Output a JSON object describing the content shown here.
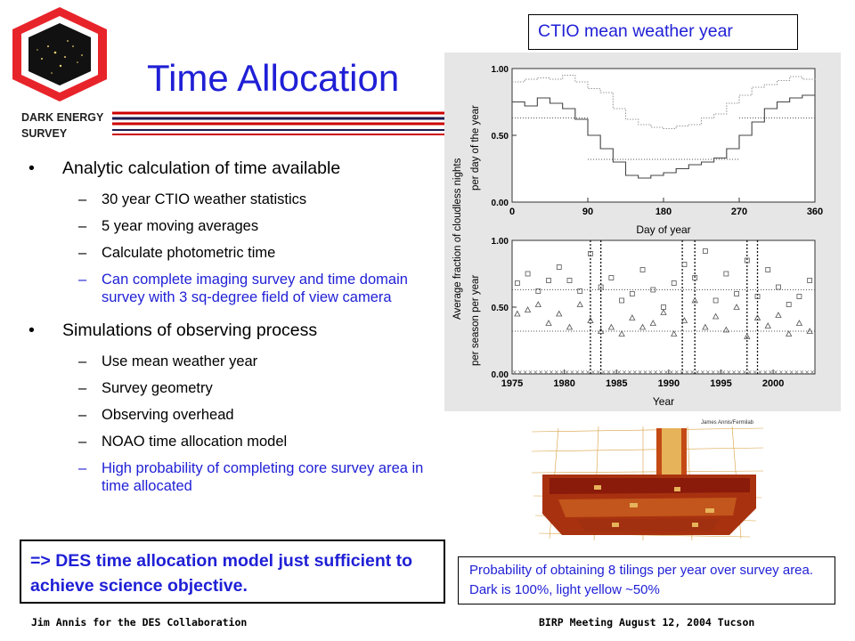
{
  "logo": {
    "line1": "DARK ENERGY",
    "line2": "SURVEY"
  },
  "title": "Time Allocation",
  "bullets": [
    {
      "text": "Analytic calculation of time available",
      "subs": [
        {
          "text": "30 year CTIO weather statistics",
          "highlight": false
        },
        {
          "text": "5 year moving averages",
          "highlight": false
        },
        {
          "text": "Calculate photometric time",
          "highlight": false
        },
        {
          "text": "Can complete imaging survey and time domain survey with 3 sq-degree field of view camera",
          "highlight": true
        }
      ]
    },
    {
      "text": "Simulations of observing process",
      "subs": [
        {
          "text": "Use mean weather year",
          "highlight": false
        },
        {
          "text": "Survey geometry",
          "highlight": false
        },
        {
          "text": "Observing overhead",
          "highlight": false
        },
        {
          "text": "NOAO time allocation model",
          "highlight": false
        },
        {
          "text": "High probability of completing core survey area in time allocated",
          "highlight": true
        }
      ]
    }
  ],
  "conclusion": "=> DES time allocation model just sufficient to achieve science objective.",
  "ctio_label": "CTIO mean weather year",
  "chart_data": [
    {
      "type": "line",
      "ylabel": "Average fraction of cloudless nights",
      "ylabel_sub": "per day of the year",
      "xlabel": "Day of year",
      "x_ticks": [
        "0",
        "90",
        "180",
        "270",
        "360"
      ],
      "y_ticks": [
        "0.00",
        "0.50",
        "1.00"
      ],
      "xlim": [
        0,
        360
      ],
      "ylim": [
        0,
        1
      ],
      "series": [
        {
          "style": "dotted-upper",
          "x": [
            0,
            15,
            30,
            45,
            60,
            75,
            90,
            105,
            120,
            135,
            150,
            165,
            180,
            195,
            210,
            225,
            240,
            255,
            270,
            285,
            300,
            315,
            330,
            345,
            360
          ],
          "values": [
            0.9,
            0.92,
            0.93,
            0.92,
            0.95,
            0.9,
            0.85,
            0.82,
            0.7,
            0.62,
            0.58,
            0.56,
            0.55,
            0.57,
            0.58,
            0.63,
            0.66,
            0.74,
            0.8,
            0.86,
            0.88,
            0.91,
            0.94,
            0.92,
            0.93
          ]
        },
        {
          "style": "solid-lower",
          "x": [
            0,
            15,
            30,
            45,
            60,
            75,
            90,
            105,
            120,
            135,
            150,
            165,
            180,
            195,
            210,
            225,
            240,
            255,
            270,
            285,
            300,
            315,
            330,
            345,
            360
          ],
          "values": [
            0.75,
            0.72,
            0.78,
            0.74,
            0.7,
            0.62,
            0.5,
            0.4,
            0.3,
            0.2,
            0.18,
            0.2,
            0.22,
            0.25,
            0.28,
            0.3,
            0.33,
            0.4,
            0.5,
            0.6,
            0.7,
            0.75,
            0.78,
            0.8,
            0.72
          ]
        }
      ],
      "reference_lines": [
        {
          "y": 0.63,
          "x_range": [
            0,
            90
          ]
        },
        {
          "y": 0.32,
          "x_range": [
            90,
            270
          ]
        },
        {
          "y": 0.63,
          "x_range": [
            270,
            360
          ]
        }
      ]
    },
    {
      "type": "scatter",
      "ylabel_sub": "per season per year",
      "xlabel": "Year",
      "x_ticks": [
        "1975",
        "1980",
        "1985",
        "1990",
        "1995",
        "2000"
      ],
      "y_ticks": [
        "0.00",
        "0.50",
        "1.00"
      ],
      "xlim": [
        1975,
        2004
      ],
      "ylim": [
        0,
        1
      ],
      "series": [
        {
          "marker": "square",
          "x": [
            1975.5,
            1976.5,
            1977.5,
            1978.5,
            1979.5,
            1980.5,
            1981.5,
            1982.5,
            1983.5,
            1984.5,
            1985.5,
            1986.5,
            1987.5,
            1988.5,
            1989.5,
            1990.5,
            1991.5,
            1992.5,
            1993.5,
            1994.5,
            1995.5,
            1996.5,
            1997.5,
            1998.5,
            1999.5,
            2000.5,
            2001.5,
            2002.5,
            2003.5
          ],
          "values": [
            0.68,
            0.75,
            0.62,
            0.7,
            0.8,
            0.7,
            0.62,
            0.9,
            0.65,
            0.72,
            0.55,
            0.6,
            0.78,
            0.63,
            0.5,
            0.68,
            0.82,
            0.72,
            0.92,
            0.55,
            0.75,
            0.6,
            0.85,
            0.58,
            0.78,
            0.65,
            0.52,
            0.58,
            0.7
          ]
        },
        {
          "marker": "triangle",
          "x": [
            1975.5,
            1976.5,
            1977.5,
            1978.5,
            1979.5,
            1980.5,
            1981.5,
            1982.5,
            1983.5,
            1984.5,
            1985.5,
            1986.5,
            1987.5,
            1988.5,
            1989.5,
            1990.5,
            1991.5,
            1992.5,
            1993.5,
            1994.5,
            1995.5,
            1996.5,
            1997.5,
            1998.5,
            1999.5,
            2000.5,
            2001.5,
            2002.5,
            2003.5
          ],
          "values": [
            0.45,
            0.48,
            0.52,
            0.38,
            0.45,
            0.35,
            0.52,
            0.4,
            0.32,
            0.35,
            0.3,
            0.42,
            0.35,
            0.38,
            0.46,
            0.3,
            0.4,
            0.55,
            0.35,
            0.43,
            0.33,
            0.5,
            0.28,
            0.42,
            0.36,
            0.44,
            0.3,
            0.38,
            0.32
          ]
        }
      ],
      "reference_lines": [
        {
          "y": 0.63,
          "x_range": [
            1975,
            2004
          ]
        },
        {
          "y": 0.32,
          "x_range": [
            1975,
            2004
          ]
        }
      ],
      "vertical_dashed_x": [
        1982.5,
        1983.5,
        1991.3,
        1992.5,
        1997.5,
        1998.5
      ],
      "baseline_marker": "x"
    }
  ],
  "map": {
    "credit": "James Annis/Fermilab"
  },
  "caption": "Probability of obtaining 8 tilings per year over survey area. Dark is 100%, light yellow ~50%",
  "footer": {
    "left": "Jim Annis for the DES Collaboration",
    "right": "BIRP Meeting August 12, 2004 Tucson"
  },
  "colors": {
    "title_blue": "#1f1fd6",
    "logo_red": "#e8242b",
    "rule_red": "#cc0000",
    "map_dark": "#8a1a0a",
    "map_light": "#e8d27a"
  }
}
